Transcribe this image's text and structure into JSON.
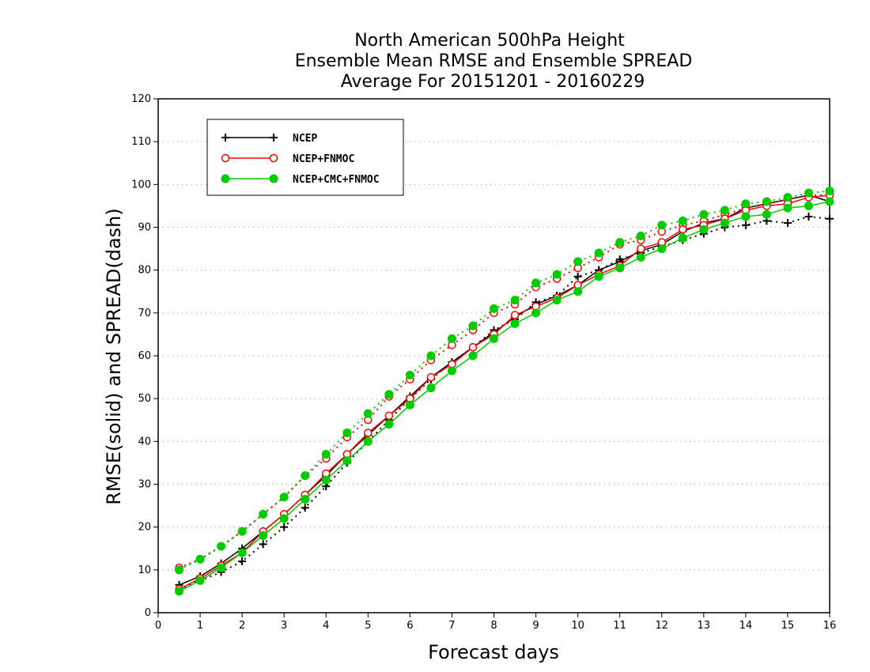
{
  "chart_data": {
    "type": "line",
    "title": [
      "North American 500hPa Height",
      "Ensemble Mean RMSE and Ensemble SPREAD",
      "Average For 20151201 - 20160229"
    ],
    "xlabel": "Forecast days",
    "ylabel": "RMSE(solid) and SPREAD(dash)",
    "xlim": [
      0,
      16
    ],
    "ylim": [
      0,
      120
    ],
    "xticks": [
      "0",
      "1",
      "2",
      "3",
      "4",
      "5",
      "6",
      "7",
      "8",
      "9",
      "10",
      "11",
      "12",
      "13",
      "14",
      "15",
      "16"
    ],
    "yticks": [
      "0",
      "10",
      "20",
      "30",
      "40",
      "50",
      "60",
      "70",
      "80",
      "90",
      "100",
      "110",
      "120"
    ],
    "grid": "horizontal dotted",
    "legend_position": "top-left",
    "x": [
      0.5,
      1,
      1.5,
      2,
      2.5,
      3,
      3.5,
      4,
      4.5,
      5,
      5.5,
      6,
      6.5,
      7,
      7.5,
      8,
      8.5,
      9,
      9.5,
      10,
      10.5,
      11,
      11.5,
      12,
      12.5,
      13,
      13.5,
      14,
      14.5,
      15,
      15.5,
      16
    ],
    "series": [
      {
        "name": "NCEP",
        "color": "#000000",
        "marker": "plus",
        "rmse": [
          6.5,
          8.5,
          11.5,
          15,
          19,
          23,
          27.5,
          32,
          37,
          41.5,
          46,
          50.5,
          55,
          58.5,
          62,
          65.5,
          69,
          72,
          74,
          76.5,
          80,
          82,
          84.5,
          86,
          89,
          91,
          92,
          94.5,
          95.5,
          96.5,
          97.5,
          96
        ],
        "spread": [
          5.5,
          7.5,
          9.5,
          12,
          16,
          20,
          24.5,
          29.5,
          35,
          40,
          45,
          50,
          54.5,
          58.5,
          62,
          66,
          68.5,
          72.5,
          74,
          78.5,
          80,
          82.5,
          84,
          85.5,
          87,
          88.5,
          90,
          90.5,
          91.5,
          91,
          92.5,
          92
        ]
      },
      {
        "name": "NCEP+FNMOC",
        "color": "#ff0000",
        "marker": "open-circle",
        "rmse": [
          5.5,
          8,
          11,
          14,
          19,
          23,
          27.5,
          32.5,
          37,
          42,
          46,
          50,
          55,
          58,
          62,
          65,
          69.5,
          71.5,
          73.5,
          76.5,
          79,
          81,
          85,
          86.5,
          89.5,
          90.5,
          92,
          94,
          95,
          95.5,
          97,
          97.5
        ],
        "spread": [
          10.5,
          12.5,
          15.5,
          19,
          23,
          27,
          32,
          36,
          41,
          45,
          50.5,
          54.5,
          59,
          62.5,
          66,
          70,
          72,
          76,
          78,
          80.5,
          83,
          86,
          87,
          89,
          90.5,
          91.5,
          93,
          94.5,
          95.5,
          96.5,
          97.5,
          97.5
        ]
      },
      {
        "name": "NCEP+CMC+FNMOC",
        "color": "#00cc00",
        "marker": "filled-circle",
        "rmse": [
          5,
          7.5,
          10.5,
          14,
          18,
          22,
          26.5,
          31,
          35.5,
          40,
          44,
          48.5,
          52.5,
          56.5,
          60,
          64,
          67.5,
          70,
          73,
          75,
          78.5,
          80.5,
          83,
          85,
          87.5,
          89.5,
          91,
          92.5,
          93,
          94.5,
          95,
          96
        ],
        "spread": [
          10,
          12.5,
          15.5,
          19,
          23,
          27,
          32,
          37,
          42,
          46.5,
          51,
          55.5,
          60,
          64,
          67,
          71,
          73,
          77,
          79,
          82,
          84,
          86.5,
          88,
          90.5,
          91.5,
          93,
          94,
          95.5,
          96,
          97,
          98,
          98.5
        ]
      }
    ]
  }
}
